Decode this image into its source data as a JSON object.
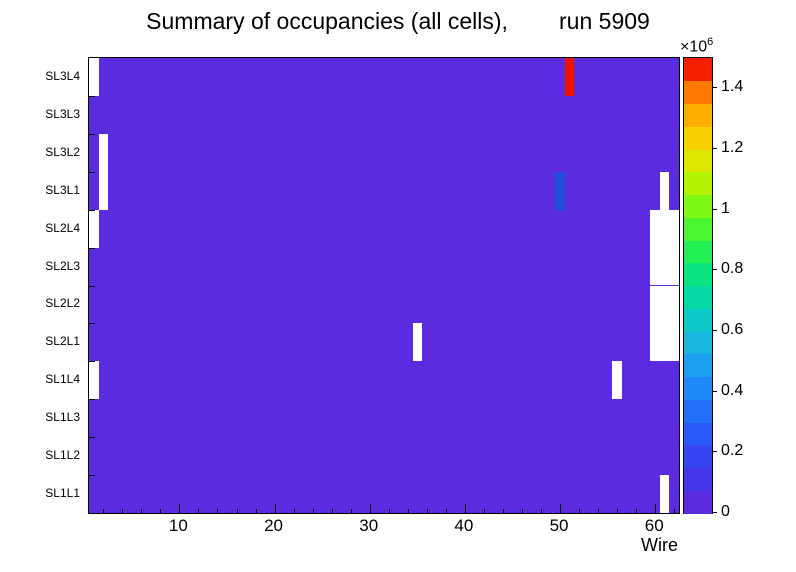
{
  "chart_data": {
    "type": "heatmap",
    "title": "Summary of occupancies (all cells),        run 5909",
    "xlabel": "Wire",
    "x_range": [
      0.5,
      62.5
    ],
    "n_wires": 62,
    "x_major_ticks": [
      10,
      20,
      30,
      40,
      50,
      60
    ],
    "x_minor_tick_step": 2,
    "rows_bottom_to_top": [
      "SL1L1",
      "SL1L2",
      "SL1L3",
      "SL1L4",
      "SL2L1",
      "SL2L2",
      "SL2L3",
      "SL2L4",
      "SL3L1",
      "SL3L2",
      "SL3L3",
      "SL3L4"
    ],
    "zlim": [
      0,
      1500000
    ],
    "z_exponent": {
      "base": "×10",
      "power": "6"
    },
    "colorbar_ticks": [
      {
        "label": "0",
        "value": 0
      },
      {
        "label": "0.2",
        "value": 200000
      },
      {
        "label": "0.4",
        "value": 400000
      },
      {
        "label": "0.6",
        "value": 600000
      },
      {
        "label": "0.8",
        "value": 800000
      },
      {
        "label": "1",
        "value": 1000000
      },
      {
        "label": "1.2",
        "value": 1200000
      },
      {
        "label": "1.4",
        "value": 1400000
      }
    ],
    "palette_low_to_high": [
      "#5b2be0",
      "#4636ea",
      "#3545f2",
      "#2959f8",
      "#2270fb",
      "#1f88fa",
      "#1ea0f2",
      "#17b7e2",
      "#0dcac8",
      "#06d9a7",
      "#0ae67f",
      "#22ef54",
      "#4bf52f",
      "#7ef814",
      "#b2f403",
      "#dce800",
      "#f7d100",
      "#ffae00",
      "#ff7a00",
      "#f52000"
    ],
    "baseline": {
      "value_estimate": 50000,
      "color": "#5b2be0"
    },
    "hot_cells": [
      {
        "layer": "SL3L4",
        "wire": 51,
        "value_estimate": 1500000,
        "color": "#ee1100"
      },
      {
        "layer": "SL3L1",
        "wire": 50,
        "value_estimate": 300000,
        "color": "#2150d8"
      }
    ],
    "empty_cells": [
      {
        "layer": "SL3L4",
        "wire_from": 1,
        "wire_to": 1
      },
      {
        "layer": "SL3L2",
        "wire_from": 2,
        "wire_to": 2
      },
      {
        "layer": "SL3L1",
        "wire_from": 2,
        "wire_to": 2
      },
      {
        "layer": "SL2L4",
        "wire_from": 1,
        "wire_to": 1
      },
      {
        "layer": "SL1L4",
        "wire_from": 1,
        "wire_to": 1
      },
      {
        "layer": "SL2L1",
        "wire_from": 35,
        "wire_to": 35
      },
      {
        "layer": "SL1L4",
        "wire_from": 56,
        "wire_to": 56
      },
      {
        "layer": "SL3L1",
        "wire_from": 61,
        "wire_to": 61
      },
      {
        "layer": "SL2L4",
        "wire_from": 60,
        "wire_to": 62
      },
      {
        "layer": "SL2L3",
        "wire_from": 60,
        "wire_to": 62
      },
      {
        "layer": "SL2L2",
        "wire_from": 60,
        "wire_to": 62
      },
      {
        "layer": "SL2L1",
        "wire_from": 60,
        "wire_to": 62
      },
      {
        "layer": "SL1L1",
        "wire_from": 61,
        "wire_to": 61
      }
    ]
  }
}
